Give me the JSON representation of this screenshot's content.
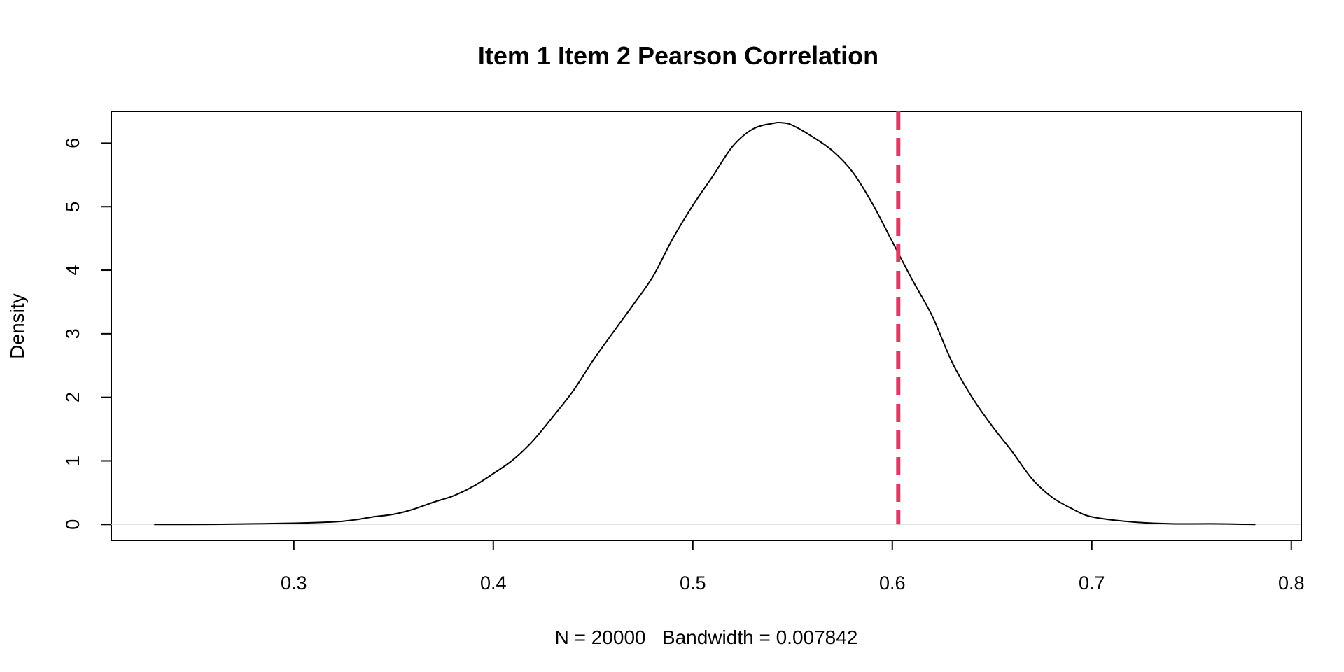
{
  "chart_data": {
    "type": "line",
    "title": "Item 1 Item 2 Pearson Correlation",
    "xlabel": "N = 20000   Bandwidth = 0.007842",
    "ylabel": "Density",
    "xlim": [
      0.2085,
      0.805
    ],
    "ylim": [
      -0.25,
      6.5
    ],
    "x_ticks": [
      0.3,
      0.4,
      0.5,
      0.6,
      0.7,
      0.8
    ],
    "x_tick_labels": [
      "0.3",
      "0.4",
      "0.5",
      "0.6",
      "0.7",
      "0.8"
    ],
    "y_ticks": [
      0,
      1,
      2,
      3,
      4,
      5,
      6
    ],
    "y_tick_labels": [
      "0",
      "1",
      "2",
      "3",
      "4",
      "5",
      "6"
    ],
    "grid": false,
    "legend": "none",
    "baseline_y": 0,
    "series": [
      {
        "style": "solid",
        "color": "#000000",
        "points": [
          [
            0.23,
            0.0
          ],
          [
            0.26,
            0.002
          ],
          [
            0.28,
            0.01
          ],
          [
            0.3,
            0.02
          ],
          [
            0.32,
            0.04
          ],
          [
            0.33,
            0.07
          ],
          [
            0.34,
            0.12
          ],
          [
            0.35,
            0.16
          ],
          [
            0.36,
            0.24
          ],
          [
            0.37,
            0.35
          ],
          [
            0.38,
            0.45
          ],
          [
            0.39,
            0.6
          ],
          [
            0.4,
            0.8
          ],
          [
            0.41,
            1.02
          ],
          [
            0.42,
            1.32
          ],
          [
            0.43,
            1.7
          ],
          [
            0.44,
            2.1
          ],
          [
            0.45,
            2.58
          ],
          [
            0.46,
            3.02
          ],
          [
            0.47,
            3.45
          ],
          [
            0.48,
            3.9
          ],
          [
            0.49,
            4.5
          ],
          [
            0.5,
            5.02
          ],
          [
            0.51,
            5.48
          ],
          [
            0.52,
            5.95
          ],
          [
            0.53,
            6.22
          ],
          [
            0.54,
            6.31
          ],
          [
            0.545,
            6.32
          ],
          [
            0.55,
            6.28
          ],
          [
            0.56,
            6.1
          ],
          [
            0.57,
            5.88
          ],
          [
            0.58,
            5.55
          ],
          [
            0.59,
            5.05
          ],
          [
            0.6,
            4.45
          ],
          [
            0.61,
            3.85
          ],
          [
            0.62,
            3.28
          ],
          [
            0.63,
            2.55
          ],
          [
            0.64,
            2.0
          ],
          [
            0.65,
            1.55
          ],
          [
            0.66,
            1.15
          ],
          [
            0.67,
            0.72
          ],
          [
            0.68,
            0.43
          ],
          [
            0.69,
            0.25
          ],
          [
            0.7,
            0.12
          ],
          [
            0.72,
            0.04
          ],
          [
            0.74,
            0.01
          ],
          [
            0.76,
            0.01
          ],
          [
            0.782,
            0.0
          ]
        ]
      }
    ],
    "annotations": [
      {
        "type": "vline",
        "x": 0.603,
        "color": "#DF3A66",
        "style": "dashed"
      }
    ]
  }
}
